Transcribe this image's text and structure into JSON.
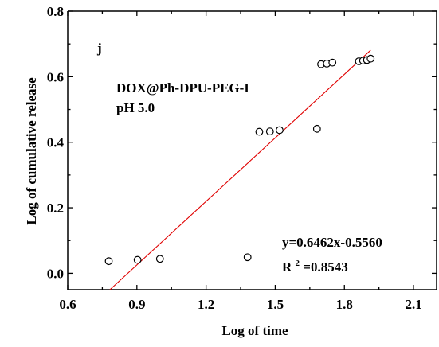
{
  "chart_data": {
    "type": "scatter",
    "xlabel": "Log of time",
    "ylabel": "Log of cumulative release",
    "xlim": [
      0.6,
      2.2
    ],
    "ylim": [
      -0.05,
      0.8
    ],
    "xticks": [
      0.6,
      0.9,
      1.2,
      1.5,
      1.8,
      2.1
    ],
    "xtick_labels": [
      "0.6",
      "0.9",
      "1.2",
      "1.5",
      "1.8",
      "2.1"
    ],
    "yticks": [
      0.0,
      0.2,
      0.4,
      0.6,
      0.8
    ],
    "ytick_labels": [
      "0.0",
      "0.2",
      "0.4",
      "0.6",
      "0.8"
    ],
    "grid": false,
    "series": [
      {
        "x": [
          0.778,
          0.903,
          1.0,
          1.38,
          1.431,
          1.477,
          1.519,
          1.681,
          1.699,
          1.724,
          1.748,
          1.863,
          1.881,
          1.898,
          1.914
        ],
        "y": [
          0.037,
          0.041,
          0.044,
          0.049,
          0.432,
          0.433,
          0.437,
          0.441,
          0.638,
          0.64,
          0.643,
          0.647,
          0.649,
          0.651,
          0.655
        ],
        "marker": "open-circle",
        "color": "#000000"
      }
    ],
    "fit": {
      "slope": 0.6462,
      "intercept": -0.556,
      "x_range": [
        0.778,
        1.914
      ],
      "color": "#e00000"
    },
    "annotations": {
      "panel_label": "j",
      "sample_line1": "DOX@Ph-DPU-PEG-I",
      "sample_line2": "pH 5.0",
      "equation": "y=0.6462x-0.5560",
      "r2_prefix": "R",
      "r2_sup": "2",
      "r2_value": "=0.8543"
    }
  }
}
